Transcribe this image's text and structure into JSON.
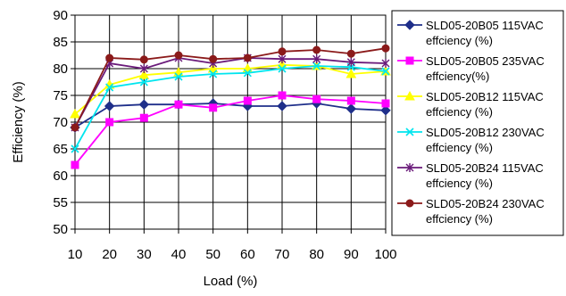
{
  "chart_data": {
    "type": "line",
    "xlabel": "Load (%)",
    "ylabel": "Efficiency (%)",
    "x": [
      10,
      20,
      30,
      40,
      50,
      60,
      70,
      80,
      90,
      100
    ],
    "xlim": [
      10,
      100
    ],
    "ylim": [
      50,
      90
    ],
    "yticks": [
      50,
      55,
      60,
      65,
      70,
      75,
      80,
      85,
      90
    ],
    "grid": true,
    "legend_position": "right",
    "series": [
      {
        "name": "SLD05-20B05 115VAC effciency (%)",
        "legend_lines": [
          "SLD05-20B05 115VAC",
          "effciency (%)"
        ],
        "color": "#1f2f8a",
        "marker": "diamond",
        "values": [
          69.0,
          73.0,
          73.3,
          73.3,
          73.5,
          73.0,
          73.0,
          73.5,
          72.5,
          72.2
        ]
      },
      {
        "name": "SLD05-20B05 235VAC effciency(%)",
        "legend_lines": [
          "SLD05-20B05 235VAC",
          "effciency(%)"
        ],
        "color": "#ff00ff",
        "marker": "square",
        "values": [
          62.0,
          70.0,
          70.8,
          73.3,
          72.7,
          74.0,
          75.0,
          74.3,
          74.0,
          73.5
        ]
      },
      {
        "name": "SLD05-20B12 115VAC effciency (%)",
        "legend_lines": [
          "SLD05-20B12 115VAC",
          "effciency (%)"
        ],
        "color": "#ffff00",
        "marker": "triangle",
        "values": [
          71.5,
          77.0,
          78.8,
          79.3,
          80.0,
          80.0,
          80.7,
          80.5,
          79.0,
          79.5
        ]
      },
      {
        "name": "SLD05-20B12 230VAC effciency (%)",
        "legend_lines": [
          "SLD05-20B12 230VAC",
          "effciency (%)"
        ],
        "color": "#00e5ee",
        "marker": "x",
        "values": [
          65.0,
          76.5,
          77.5,
          78.5,
          79.0,
          79.2,
          80.0,
          80.5,
          80.3,
          79.5
        ]
      },
      {
        "name": "SLD05-20B24 115VAC effciency (%)",
        "legend_lines": [
          "SLD05-20B24 115VAC",
          "effciency (%)"
        ],
        "color": "#6a1a7a",
        "marker": "star",
        "values": [
          69.0,
          81.0,
          80.0,
          82.0,
          81.0,
          82.0,
          81.8,
          81.8,
          81.2,
          81.0
        ]
      },
      {
        "name": "SLD05-20B24 230VAC effciency (%)",
        "legend_lines": [
          "SLD05-20B24 230VAC",
          "effciency (%)"
        ],
        "color": "#8b1a1a",
        "marker": "circle",
        "values": [
          69.0,
          82.0,
          81.7,
          82.5,
          81.8,
          82.0,
          83.2,
          83.5,
          82.8,
          83.8
        ]
      }
    ]
  }
}
